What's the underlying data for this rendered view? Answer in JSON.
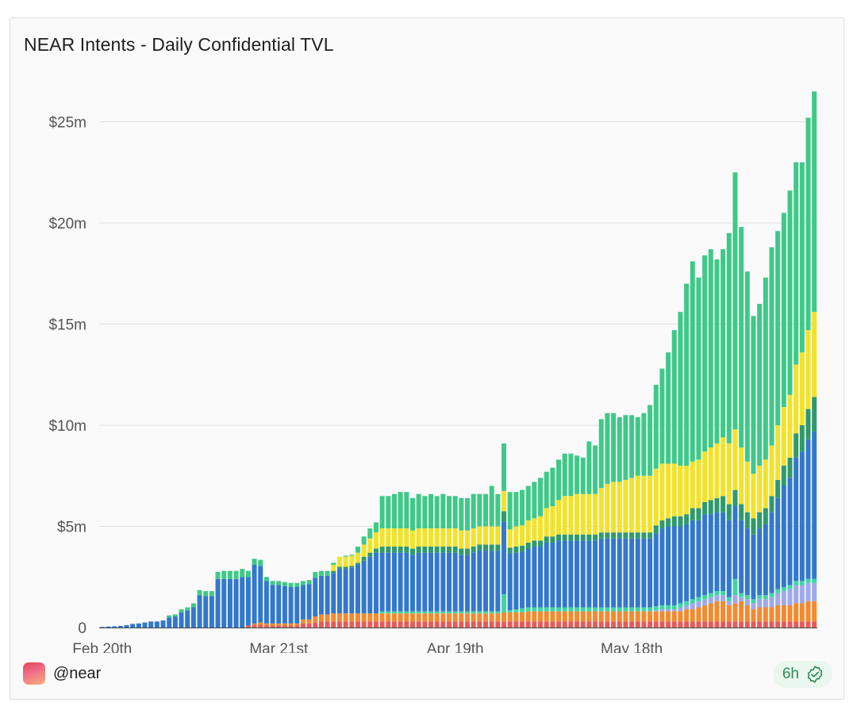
{
  "title": "NEAR Intents - Daily Confidential TVL",
  "footer": {
    "handle": "@near",
    "refresh": "6h"
  },
  "icons": {
    "logo": "near-logo-icon",
    "refresh": "verified-check-icon"
  },
  "colors": {
    "red": "#e35d5b",
    "orange": "#f28a2e",
    "lavender": "#9fa8ea",
    "teal": "#3fd6a5",
    "blue": "#3278cc",
    "darkgreen": "#2f9a6b",
    "yellow": "#f2e32a",
    "green": "#3ec988",
    "accent": "#2e8b57"
  },
  "chart_data": {
    "type": "bar",
    "stacked": true,
    "ylim": [
      0,
      27000000
    ],
    "y_ticks": [
      0,
      5000000,
      10000000,
      15000000,
      20000000,
      25000000
    ],
    "y_tick_labels": [
      "0",
      "$5m",
      "$10m",
      "$15m",
      "$20m",
      "$25m"
    ],
    "x_tick_labels": [
      {
        "index": 0,
        "label": "Feb 20th"
      },
      {
        "index": 29,
        "label": "Mar 21st"
      },
      {
        "index": 58,
        "label": "Apr 19th"
      },
      {
        "index": 87,
        "label": "May 18th"
      }
    ],
    "totals_m": [
      0.03,
      0.05,
      0.06,
      0.08,
      0.12,
      0.18,
      0.2,
      0.25,
      0.3,
      0.3,
      0.35,
      0.6,
      0.65,
      0.9,
      1.0,
      1.2,
      1.85,
      1.8,
      1.8,
      2.75,
      2.8,
      2.8,
      2.8,
      2.9,
      2.8,
      3.4,
      3.35,
      2.5,
      2.3,
      2.3,
      2.25,
      2.2,
      2.2,
      2.3,
      2.35,
      2.75,
      2.8,
      2.8,
      3.2,
      3.5,
      3.55,
      3.6,
      4.0,
      4.5,
      4.9,
      5.2,
      6.5,
      6.5,
      6.6,
      6.7,
      6.7,
      6.4,
      6.6,
      6.5,
      6.6,
      6.5,
      6.6,
      6.5,
      6.5,
      6.4,
      6.4,
      6.6,
      6.6,
      6.6,
      7.0,
      6.6,
      9.1,
      6.7,
      6.7,
      6.8,
      7.0,
      7.2,
      7.4,
      7.7,
      7.9,
      8.3,
      8.6,
      8.6,
      8.5,
      8.4,
      9.2,
      9.0,
      10.3,
      10.6,
      10.6,
      10.4,
      10.5,
      10.5,
      10.4,
      10.6,
      11.0,
      12.0,
      12.8,
      13.6,
      14.7,
      15.6,
      17.0,
      18.1,
      17.3,
      18.4,
      18.7,
      18.2,
      18.7,
      19.5,
      22.5,
      19.8,
      17.6,
      15.4,
      16.0,
      17.3,
      18.8,
      19.6,
      20.5,
      21.6,
      23.0,
      23.0,
      25.2,
      26.5
    ],
    "series": [
      {
        "name": "",
        "color": "red",
        "values_m": [
          0,
          0,
          0,
          0,
          0,
          0,
          0,
          0,
          0,
          0,
          0,
          0,
          0,
          0,
          0,
          0,
          0,
          0,
          0,
          0,
          0,
          0,
          0,
          0,
          0.1,
          0.15,
          0.15,
          0.1,
          0.1,
          0.1,
          0.1,
          0.1,
          0.1,
          0.2,
          0.2,
          0.25,
          0.3,
          0.3,
          0.3,
          0.3,
          0.3,
          0.3,
          0.3,
          0.3,
          0.3,
          0.3,
          0.3,
          0.3,
          0.3,
          0.3,
          0.3,
          0.3,
          0.3,
          0.3,
          0.3,
          0.3,
          0.3,
          0.3,
          0.3,
          0.3,
          0.3,
          0.3,
          0.3,
          0.3,
          0.3,
          0.3,
          0.3,
          0.3,
          0.3,
          0.3,
          0.3,
          0.3,
          0.3,
          0.3,
          0.3,
          0.3,
          0.3,
          0.3,
          0.3,
          0.3,
          0.3,
          0.3,
          0.3,
          0.3,
          0.3,
          0.3,
          0.3,
          0.3,
          0.3,
          0.3,
          0.3,
          0.3,
          0.3,
          0.3,
          0.3,
          0.3,
          0.3,
          0.3,
          0.3,
          0.3,
          0.3,
          0.3,
          0.3,
          0.3,
          0.3,
          0.3,
          0.3,
          0.3,
          0.3,
          0.3,
          0.3,
          0.3,
          0.3,
          0.3,
          0.3,
          0.3,
          0.3,
          0.3
        ]
      },
      {
        "name": "",
        "color": "orange",
        "values_m": [
          0,
          0,
          0,
          0,
          0,
          0,
          0,
          0,
          0,
          0,
          0,
          0,
          0,
          0,
          0,
          0,
          0,
          0,
          0,
          0,
          0,
          0,
          0,
          0,
          0,
          0.05,
          0.1,
          0.1,
          0.1,
          0.1,
          0.1,
          0.1,
          0.1,
          0.2,
          0.2,
          0.3,
          0.35,
          0.35,
          0.4,
          0.4,
          0.4,
          0.4,
          0.4,
          0.4,
          0.4,
          0.4,
          0.4,
          0.4,
          0.4,
          0.4,
          0.4,
          0.4,
          0.4,
          0.4,
          0.4,
          0.4,
          0.4,
          0.4,
          0.4,
          0.4,
          0.4,
          0.4,
          0.4,
          0.4,
          0.4,
          0.4,
          0.45,
          0.45,
          0.45,
          0.45,
          0.5,
          0.5,
          0.5,
          0.5,
          0.5,
          0.5,
          0.5,
          0.5,
          0.5,
          0.5,
          0.5,
          0.5,
          0.5,
          0.5,
          0.5,
          0.5,
          0.5,
          0.5,
          0.5,
          0.5,
          0.5,
          0.5,
          0.5,
          0.5,
          0.5,
          0.5,
          0.6,
          0.6,
          0.7,
          0.8,
          0.9,
          1.0,
          1.0,
          0.8,
          0.9,
          1.0,
          0.8,
          0.6,
          0.7,
          0.7,
          0.7,
          0.8,
          0.8,
          0.8,
          0.9,
          0.9,
          1.0,
          1.0
        ]
      },
      {
        "name": "",
        "color": "lavender",
        "values_m": [
          0,
          0,
          0,
          0,
          0,
          0,
          0,
          0,
          0,
          0,
          0,
          0,
          0,
          0,
          0,
          0,
          0,
          0,
          0,
          0,
          0,
          0,
          0,
          0,
          0,
          0,
          0,
          0,
          0,
          0,
          0,
          0,
          0,
          0,
          0,
          0,
          0,
          0,
          0,
          0,
          0,
          0,
          0,
          0,
          0,
          0,
          0,
          0,
          0,
          0,
          0,
          0,
          0,
          0,
          0,
          0,
          0,
          0,
          0,
          0,
          0,
          0,
          0,
          0,
          0,
          0,
          0,
          0,
          0,
          0,
          0,
          0,
          0,
          0,
          0,
          0,
          0,
          0,
          0,
          0,
          0,
          0,
          0,
          0,
          0,
          0,
          0,
          0,
          0,
          0,
          0,
          0.05,
          0.1,
          0.1,
          0.1,
          0.2,
          0.2,
          0.3,
          0.3,
          0.3,
          0.3,
          0.3,
          0.3,
          0.2,
          0.4,
          0.2,
          0.3,
          0.3,
          0.4,
          0.4,
          0.5,
          0.6,
          0.7,
          0.8,
          0.9,
          0.9,
          0.9,
          0.9
        ]
      },
      {
        "name": "",
        "color": "teal",
        "values_m": [
          0,
          0,
          0,
          0,
          0,
          0,
          0,
          0,
          0,
          0,
          0,
          0,
          0,
          0,
          0,
          0,
          0,
          0,
          0,
          0,
          0,
          0,
          0,
          0,
          0,
          0,
          0,
          0,
          0,
          0,
          0,
          0,
          0,
          0,
          0,
          0,
          0,
          0,
          0,
          0,
          0,
          0,
          0,
          0,
          0,
          0,
          0.1,
          0.1,
          0.1,
          0.1,
          0.1,
          0.1,
          0.1,
          0.1,
          0.1,
          0.1,
          0.1,
          0.1,
          0.1,
          0.1,
          0.1,
          0.1,
          0.1,
          0.1,
          0.1,
          0.1,
          0.9,
          0.1,
          0.15,
          0.2,
          0.2,
          0.2,
          0.2,
          0.2,
          0.2,
          0.2,
          0.2,
          0.2,
          0.2,
          0.2,
          0.2,
          0.2,
          0.2,
          0.2,
          0.2,
          0.2,
          0.2,
          0.2,
          0.2,
          0.2,
          0.2,
          0.2,
          0.2,
          0.2,
          0.2,
          0.2,
          0.2,
          0.2,
          0.2,
          0.2,
          0.2,
          0.2,
          0.2,
          0.2,
          0.8,
          0.2,
          0.2,
          0.2,
          0.2,
          0.2,
          0.2,
          0.2,
          0.2,
          0.2,
          0.2,
          0.2,
          0.2,
          0.2
        ]
      },
      {
        "name": "",
        "color": "blue",
        "values_m": [
          0.03,
          0.05,
          0.06,
          0.08,
          0.12,
          0.18,
          0.2,
          0.25,
          0.3,
          0.3,
          0.35,
          0.5,
          0.55,
          0.75,
          0.85,
          1.0,
          1.6,
          1.55,
          1.55,
          2.4,
          2.4,
          2.4,
          2.4,
          2.5,
          2.4,
          2.9,
          2.8,
          2.1,
          1.9,
          1.9,
          1.85,
          1.8,
          1.8,
          1.7,
          1.75,
          1.9,
          1.9,
          1.9,
          2.0,
          2.2,
          2.2,
          2.25,
          2.4,
          2.6,
          2.8,
          3.0,
          2.9,
          2.9,
          2.9,
          2.9,
          2.9,
          2.8,
          2.9,
          2.9,
          2.9,
          2.9,
          2.9,
          2.9,
          2.9,
          2.8,
          2.8,
          2.9,
          3.0,
          3.0,
          3.0,
          3.0,
          3.6,
          2.8,
          2.8,
          2.8,
          2.9,
          3.0,
          3.0,
          3.2,
          3.2,
          3.3,
          3.3,
          3.3,
          3.3,
          3.3,
          3.3,
          3.3,
          3.4,
          3.4,
          3.4,
          3.4,
          3.4,
          3.4,
          3.4,
          3.4,
          3.4,
          3.6,
          3.8,
          3.9,
          3.9,
          3.8,
          3.8,
          3.9,
          3.8,
          4.0,
          3.9,
          3.9,
          3.9,
          3.8,
          3.6,
          3.6,
          3.3,
          3.2,
          3.3,
          3.5,
          4.0,
          4.5,
          5.0,
          5.3,
          6.1,
          6.4,
          6.9,
          7.3
        ]
      },
      {
        "name": "",
        "color": "darkgreen",
        "values_m": [
          0,
          0,
          0,
          0,
          0,
          0,
          0,
          0,
          0,
          0,
          0,
          0,
          0,
          0,
          0,
          0,
          0,
          0,
          0,
          0,
          0,
          0,
          0,
          0,
          0,
          0,
          0,
          0,
          0,
          0,
          0,
          0,
          0,
          0,
          0,
          0,
          0,
          0,
          0.1,
          0.1,
          0.1,
          0.1,
          0.1,
          0.2,
          0.2,
          0.2,
          0.3,
          0.3,
          0.3,
          0.3,
          0.3,
          0.3,
          0.3,
          0.3,
          0.3,
          0.3,
          0.3,
          0.3,
          0.3,
          0.3,
          0.3,
          0.3,
          0.3,
          0.3,
          0.3,
          0.3,
          0.5,
          0.3,
          0.3,
          0.3,
          0.3,
          0.3,
          0.3,
          0.3,
          0.3,
          0.3,
          0.3,
          0.3,
          0.3,
          0.3,
          0.3,
          0.3,
          0.3,
          0.3,
          0.3,
          0.3,
          0.3,
          0.3,
          0.3,
          0.3,
          0.3,
          0.4,
          0.4,
          0.4,
          0.5,
          0.5,
          0.5,
          0.6,
          0.6,
          0.6,
          0.7,
          0.7,
          0.8,
          0.8,
          0.8,
          0.8,
          0.8,
          0.8,
          0.8,
          0.8,
          0.8,
          0.9,
          1.0,
          1.0,
          1.2,
          1.3,
          1.5,
          1.7
        ]
      },
      {
        "name": "",
        "color": "yellow",
        "values_m": [
          0,
          0,
          0,
          0,
          0,
          0,
          0,
          0,
          0,
          0,
          0,
          0,
          0,
          0,
          0,
          0,
          0,
          0,
          0,
          0,
          0,
          0,
          0,
          0,
          0,
          0,
          0,
          0,
          0,
          0,
          0,
          0,
          0,
          0,
          0,
          0,
          0,
          0,
          0.3,
          0.5,
          0.5,
          0.5,
          0.5,
          0.6,
          0.7,
          0.8,
          0.9,
          0.9,
          0.9,
          0.9,
          0.9,
          0.9,
          0.9,
          0.9,
          0.9,
          0.9,
          0.9,
          0.9,
          0.9,
          0.9,
          0.9,
          0.9,
          0.9,
          0.9,
          0.9,
          0.9,
          1.0,
          0.9,
          1.0,
          1.0,
          1.1,
          1.1,
          1.2,
          1.4,
          1.5,
          1.7,
          1.9,
          1.9,
          2.0,
          2.0,
          2.0,
          2.0,
          2.2,
          2.4,
          2.5,
          2.5,
          2.6,
          2.7,
          2.8,
          2.8,
          2.8,
          2.8,
          2.8,
          2.7,
          2.6,
          2.5,
          2.4,
          2.3,
          2.4,
          2.5,
          2.6,
          2.7,
          2.9,
          3.0,
          3.0,
          2.8,
          2.5,
          2.2,
          2.3,
          2.4,
          2.5,
          2.7,
          2.9,
          3.1,
          3.4,
          3.6,
          3.9,
          4.2
        ]
      }
    ]
  }
}
